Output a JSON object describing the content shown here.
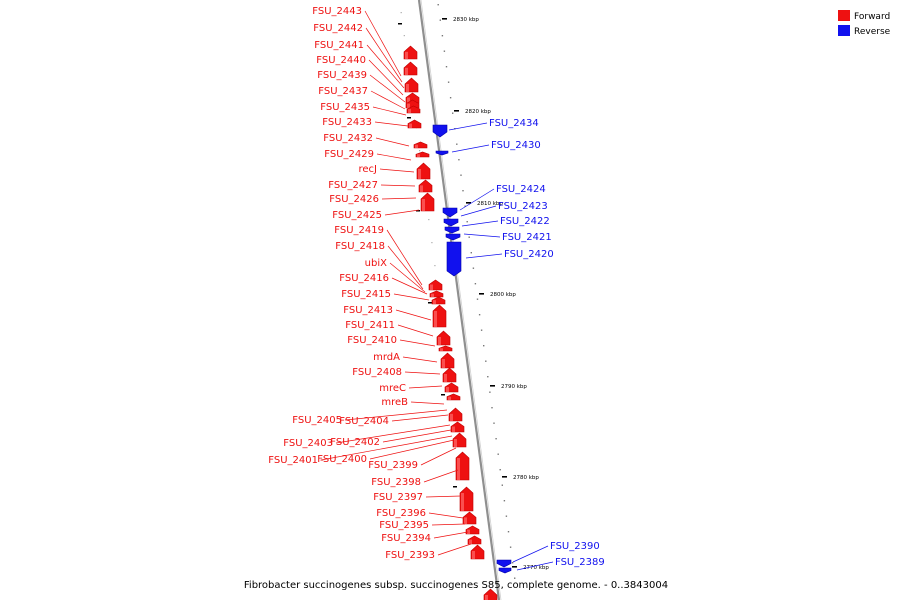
{
  "caption": "Fibrobacter succinogenes subsp. succinogenes S85, complete genome. - 0..3843004",
  "legend": [
    {
      "label": "Forward",
      "color": "#ee1111"
    },
    {
      "label": "Reverse",
      "color": "#1111ee"
    }
  ],
  "colors": {
    "forward": "#ee1111",
    "reverse": "#1111ee",
    "backbone": "#999999"
  },
  "ticks": [
    {
      "label": "2830 kbp",
      "kbp": 2830
    },
    {
      "label": "2820 kbp",
      "kbp": 2820
    },
    {
      "label": "2810 kbp",
      "kbp": 2810
    },
    {
      "label": "2800 kbp",
      "kbp": 2800
    },
    {
      "label": "2790 kbp",
      "kbp": 2790
    },
    {
      "label": "2780 kbp",
      "kbp": 2780
    },
    {
      "label": "2770 kbp",
      "kbp": 2770
    }
  ],
  "genes_forward": [
    {
      "name": "FSU_2443"
    },
    {
      "name": "FSU_2442"
    },
    {
      "name": "FSU_2441"
    },
    {
      "name": "FSU_2440"
    },
    {
      "name": "FSU_2439"
    },
    {
      "name": "FSU_2437"
    },
    {
      "name": "FSU_2435"
    },
    {
      "name": "FSU_2433"
    },
    {
      "name": "FSU_2432"
    },
    {
      "name": "FSU_2429"
    },
    {
      "name": "recJ"
    },
    {
      "name": "FSU_2427"
    },
    {
      "name": "FSU_2426"
    },
    {
      "name": "FSU_2425"
    },
    {
      "name": "FSU_2419"
    },
    {
      "name": "FSU_2418"
    },
    {
      "name": "ubiX"
    },
    {
      "name": "FSU_2416"
    },
    {
      "name": "FSU_2415"
    },
    {
      "name": "FSU_2413"
    },
    {
      "name": "FSU_2411"
    },
    {
      "name": "FSU_2410"
    },
    {
      "name": "mrdA"
    },
    {
      "name": "FSU_2408"
    },
    {
      "name": "mreC"
    },
    {
      "name": "mreB"
    },
    {
      "name": "FSU_2405"
    },
    {
      "name": "FSU_2404"
    },
    {
      "name": "FSU_2403"
    },
    {
      "name": "FSU_2402"
    },
    {
      "name": "FSU_2401"
    },
    {
      "name": "FSU_2400"
    },
    {
      "name": "FSU_2399"
    },
    {
      "name": "FSU_2398"
    },
    {
      "name": "FSU_2397"
    },
    {
      "name": "FSU_2396"
    },
    {
      "name": "FSU_2395"
    },
    {
      "name": "FSU_2394"
    },
    {
      "name": "FSU_2393"
    }
  ],
  "genes_reverse": [
    {
      "name": "FSU_2434"
    },
    {
      "name": "FSU_2430"
    },
    {
      "name": "FSU_2424"
    },
    {
      "name": "FSU_2423"
    },
    {
      "name": "FSU_2422"
    },
    {
      "name": "FSU_2421"
    },
    {
      "name": "FSU_2420"
    },
    {
      "name": "FSU_2390"
    },
    {
      "name": "FSU_2389"
    }
  ]
}
